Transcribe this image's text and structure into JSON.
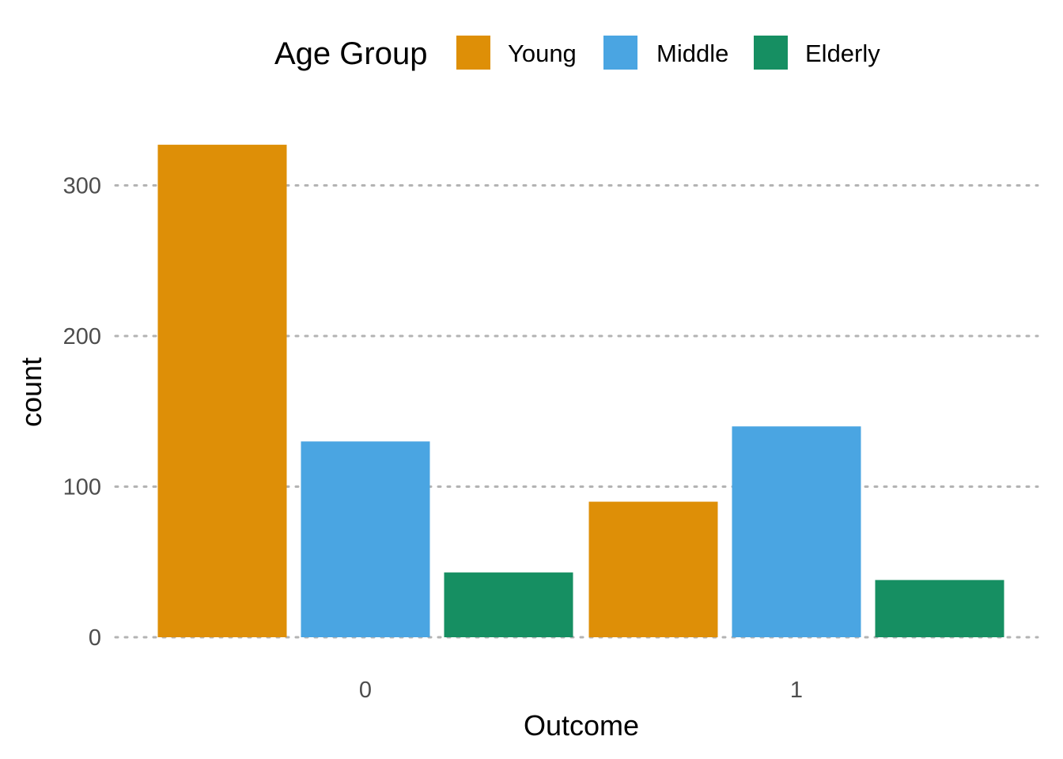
{
  "chart_data": {
    "type": "bar",
    "categories": [
      "0",
      "1"
    ],
    "series": [
      {
        "name": "Young",
        "values": [
          327,
          90
        ],
        "color": "#DE8F07"
      },
      {
        "name": "Middle",
        "values": [
          130,
          140
        ],
        "color": "#4AA5E2"
      },
      {
        "name": "Elderly",
        "values": [
          43,
          38
        ],
        "color": "#168F62"
      }
    ],
    "xlabel": "Outcome",
    "ylabel": "count",
    "ylim": [
      0,
      340
    ],
    "yticks": [
      0,
      100,
      200,
      300
    ],
    "legend": {
      "title": "Age Group",
      "position": "top"
    },
    "grid": {
      "horizontal": true,
      "vertical": false,
      "style": "dotted"
    }
  }
}
